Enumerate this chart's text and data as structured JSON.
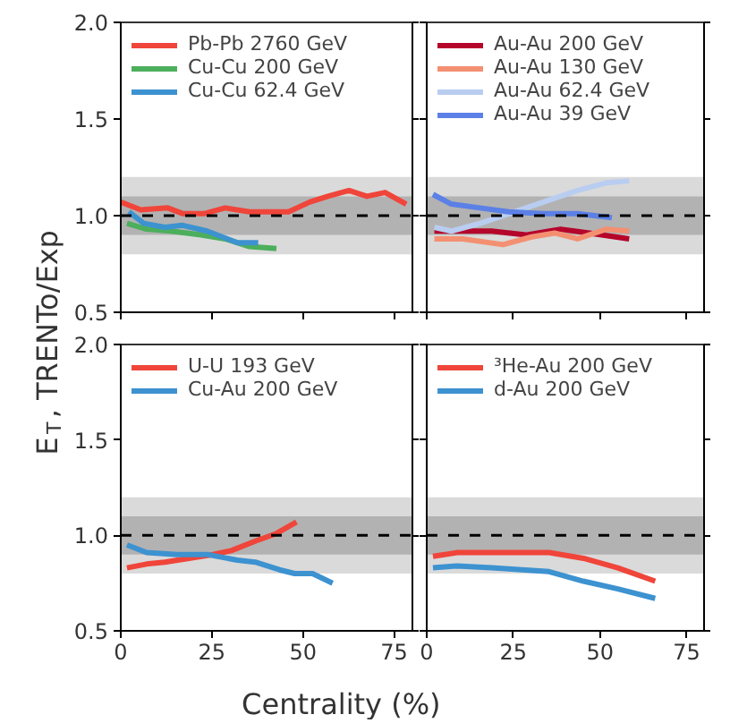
{
  "chart_data": [
    {
      "type": "line",
      "ylabel": "E$_{T}$, TRENTo/Exp",
      "xlim": [
        0,
        80
      ],
      "ylim": [
        0.5,
        2.0
      ],
      "xticks": [
        0,
        25,
        50,
        75
      ],
      "yticks": [
        {
          "value": 0.5,
          "label": "0.5"
        },
        {
          "value": 1.0,
          "label": "1.0"
        },
        {
          "value": 1.5,
          "label": "1.5"
        },
        {
          "value": 2.0,
          "label": "2.0"
        }
      ],
      "tick_labels": "y",
      "legend": "top left",
      "grid": false,
      "ref_lines": [
        {
          "axis": "y",
          "value": 1.0,
          "color": "#000000",
          "line_style": "dashed"
        }
      ],
      "bands": [
        {
          "axis": "y",
          "from": 0.8,
          "to": 1.2,
          "color": "#dadada"
        },
        {
          "axis": "y",
          "from": 0.9,
          "to": 1.1,
          "color": "#b2b2b2"
        }
      ],
      "series": [
        {
          "name": "Pb-Pb 2760 GeV",
          "color": "#f0453a",
          "x": [
            0,
            5.5,
            12.9,
            17.1,
            22.8,
            28.6,
            35.3,
            40.2,
            46,
            51.8,
            56.8,
            62.6,
            67.5,
            72.5,
            78.3
          ],
          "values": [
            1.07,
            1.03,
            1.04,
            1.01,
            1.01,
            1.04,
            1.02,
            1.02,
            1.02,
            1.07,
            1.1,
            1.13,
            1.1,
            1.12,
            1.06
          ]
        },
        {
          "name": "Cu-Cu 200 GeV",
          "color": "#4caf5c",
          "x": [
            1.7,
            7.1,
            13.7,
            22,
            28.6,
            35.3,
            42.7
          ],
          "values": [
            0.96,
            0.93,
            0.92,
            0.9,
            0.88,
            0.84,
            0.83
          ]
        },
        {
          "name": "Cu-Cu 62.4 GeV",
          "color": "#3d92d0",
          "x": [
            2.2,
            6.3,
            12.1,
            17,
            23.7,
            32,
            37.7
          ],
          "values": [
            1.02,
            0.96,
            0.94,
            0.95,
            0.92,
            0.86,
            0.86
          ]
        }
      ]
    },
    {
      "type": "line",
      "xlim": [
        0,
        80
      ],
      "ylim": [
        0.5,
        2.0
      ],
      "xticks": [
        0,
        25,
        50,
        75
      ],
      "yticks": [
        0.5,
        1.0,
        1.5,
        2.0
      ],
      "tick_labels": false,
      "legend": "top left",
      "grid": false,
      "ref_lines": [
        {
          "axis": "y",
          "value": 1.0,
          "color": "#000000",
          "line_style": "dashed"
        }
      ],
      "bands": [
        {
          "axis": "y",
          "from": 0.8,
          "to": 1.2,
          "color": "#dadada"
        },
        {
          "axis": "y",
          "from": 0.9,
          "to": 1.1,
          "color": "#b2b2b2"
        }
      ],
      "series": [
        {
          "name": "Au-Au 200 GeV",
          "color": "#b5052b",
          "x": [
            2.2,
            10.4,
            18.7,
            28.6,
            38.6,
            46.9,
            58.4
          ],
          "values": [
            0.92,
            0.92,
            0.92,
            0.9,
            0.93,
            0.91,
            0.88
          ]
        },
        {
          "name": "Au-Au 130 GeV",
          "color": "#f39072",
          "x": [
            2.2,
            10.4,
            22,
            30.3,
            36.9,
            43.5,
            51.8,
            58.4
          ],
          "values": [
            0.88,
            0.88,
            0.85,
            0.89,
            0.91,
            0.88,
            0.93,
            0.92
          ]
        },
        {
          "name": "Au-Au 62.4 GeV",
          "color": "#b9cdf0",
          "x": [
            2.2,
            7.1,
            15.4,
            23.7,
            33.6,
            43.5,
            51.8,
            58.4
          ],
          "values": [
            0.94,
            0.92,
            0.96,
            1.01,
            1.07,
            1.13,
            1.17,
            1.18
          ]
        },
        {
          "name": "Au-Au 39 GeV",
          "color": "#5b80e6",
          "x": [
            1.8,
            7.1,
            15.4,
            23.7,
            33.6,
            43.5,
            53.4
          ],
          "values": [
            1.11,
            1.06,
            1.04,
            1.02,
            1.01,
            1.01,
            0.99
          ]
        }
      ]
    },
    {
      "type": "line",
      "xlabel": "Centrality (%)",
      "xlim": [
        0,
        80
      ],
      "ylim": [
        0.5,
        2.0
      ],
      "xticks": [
        0,
        25,
        50,
        75
      ],
      "yticks": [
        {
          "value": 0.5,
          "label": "0.5"
        },
        {
          "value": 1.0,
          "label": "1.0"
        },
        {
          "value": 1.5,
          "label": "1.5"
        },
        {
          "value": 2.0,
          "label": "2.0"
        }
      ],
      "legend": "top left",
      "grid": false,
      "ref_lines": [
        {
          "axis": "y",
          "value": 1.0,
          "color": "#000000",
          "line_style": "dashed"
        }
      ],
      "bands": [
        {
          "axis": "y",
          "from": 0.8,
          "to": 1.2,
          "color": "#dadada"
        },
        {
          "axis": "y",
          "from": 0.9,
          "to": 1.1,
          "color": "#b2b2b2"
        }
      ],
      "series": [
        {
          "name": "U-U 193 GeV",
          "color": "#f0453a",
          "x": [
            1.7,
            7.1,
            12.1,
            18.7,
            25.3,
            30.3,
            36.9,
            42.7,
            48.2
          ],
          "values": [
            0.83,
            0.85,
            0.86,
            0.88,
            0.9,
            0.92,
            0.97,
            1.01,
            1.07
          ]
        },
        {
          "name": "Cu-Au 200 GeV",
          "color": "#3d92d0",
          "x": [
            1.7,
            7.1,
            15.4,
            23.7,
            32,
            36.9,
            43.5,
            47.7,
            52.6,
            58.1
          ],
          "values": [
            0.95,
            0.91,
            0.9,
            0.9,
            0.87,
            0.86,
            0.82,
            0.8,
            0.8,
            0.75
          ]
        }
      ]
    },
    {
      "type": "line",
      "xlim": [
        0,
        80
      ],
      "ylim": [
        0.5,
        2.0
      ],
      "xticks": [
        0,
        25,
        50,
        75
      ],
      "yticks": [
        0.5,
        1.0,
        1.5,
        2.0
      ],
      "tick_labels": "x",
      "legend": "top left",
      "grid": false,
      "ref_lines": [
        {
          "axis": "y",
          "value": 1.0,
          "color": "#000000",
          "line_style": "dashed"
        }
      ],
      "bands": [
        {
          "axis": "y",
          "from": 0.8,
          "to": 1.2,
          "color": "#dadada"
        },
        {
          "axis": "y",
          "from": 0.9,
          "to": 1.1,
          "color": "#b2b2b2"
        }
      ],
      "series": [
        {
          "name": "³He-Au 200 GeV",
          "color": "#f0453a",
          "x": [
            1.8,
            8.8,
            18.7,
            35.3,
            45.2,
            55.1,
            65.9
          ],
          "values": [
            0.89,
            0.91,
            0.91,
            0.91,
            0.88,
            0.83,
            0.76
          ]
        },
        {
          "name": "d-Au 200 GeV",
          "color": "#3d92d0",
          "x": [
            1.8,
            8.8,
            18.7,
            35.3,
            45.2,
            55.1,
            65.9
          ],
          "values": [
            0.83,
            0.84,
            0.83,
            0.81,
            0.76,
            0.72,
            0.67
          ]
        }
      ]
    }
  ]
}
